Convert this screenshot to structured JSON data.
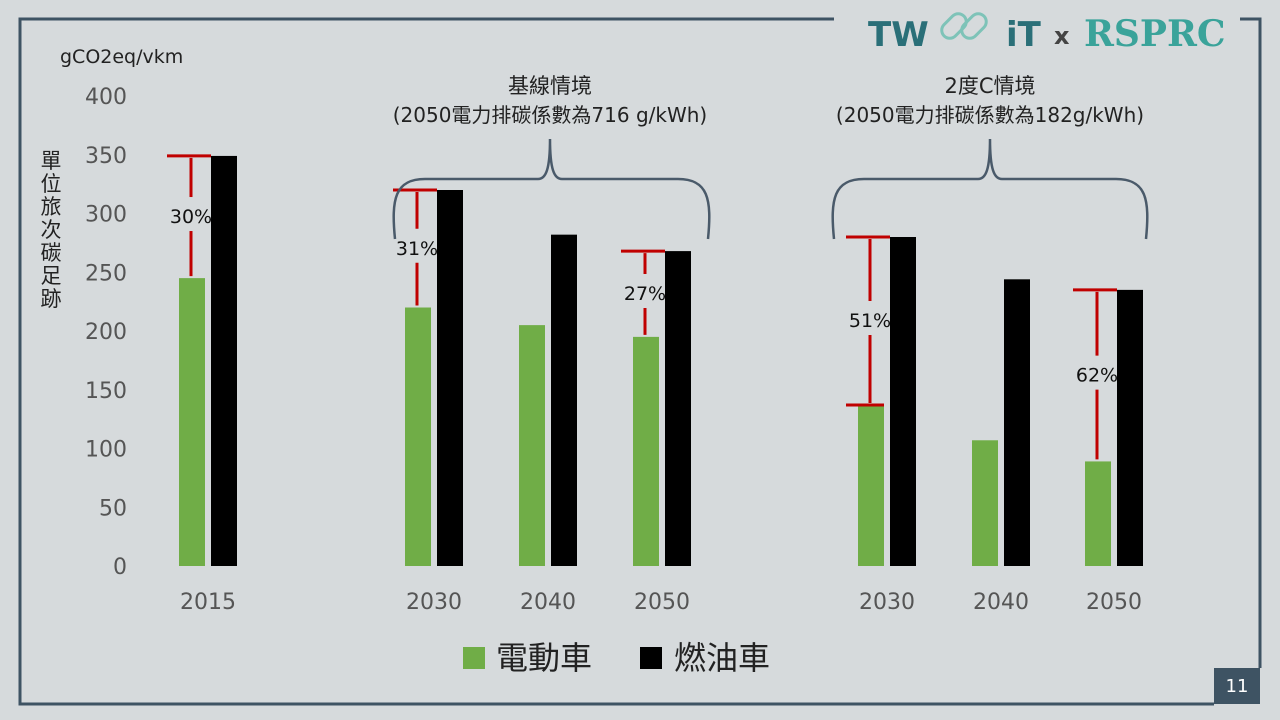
{
  "page_number": "11",
  "logo": {
    "left_text": "TW",
    "right_text": "iT",
    "x": "x",
    "partner": "RSPRC"
  },
  "colors": {
    "ev": "#70ad47",
    "ice": "#000000",
    "marker": "#c00000",
    "brace": "#4a5a6a",
    "frame": "#3e5363"
  },
  "chart_data": {
    "type": "bar",
    "unit_label": "gCO2eq/vkm",
    "ylabel": "單位旅次碳足跡",
    "ylim": [
      0,
      400
    ],
    "yticks": [
      0,
      50,
      100,
      150,
      200,
      250,
      300,
      350,
      400
    ],
    "categories": [
      "2015",
      "2030",
      "2040",
      "2050",
      "2030",
      "2040",
      "2050"
    ],
    "series": [
      {
        "name": "電動車",
        "values": [
          245,
          220,
          205,
          195,
          137,
          107,
          89
        ]
      },
      {
        "name": "燃油車",
        "values": [
          349,
          320,
          282,
          268,
          280,
          244,
          235
        ]
      }
    ],
    "annotations": [
      {
        "category_index": 0,
        "label": "30%"
      },
      {
        "category_index": 1,
        "label": "31%"
      },
      {
        "category_index": 3,
        "label": "27%"
      },
      {
        "category_index": 4,
        "label": "51%"
      },
      {
        "category_index": 6,
        "label": "62%"
      }
    ],
    "groups": [
      {
        "title": "基線情境",
        "subtitle": "(2050電力排碳係數為716 g/kWh)",
        "from": 1,
        "to": 3
      },
      {
        "title": "2度C情境",
        "subtitle": "(2050電力排碳係數為182g/kWh)",
        "from": 4,
        "to": 6
      }
    ],
    "legend_position": "bottom"
  }
}
